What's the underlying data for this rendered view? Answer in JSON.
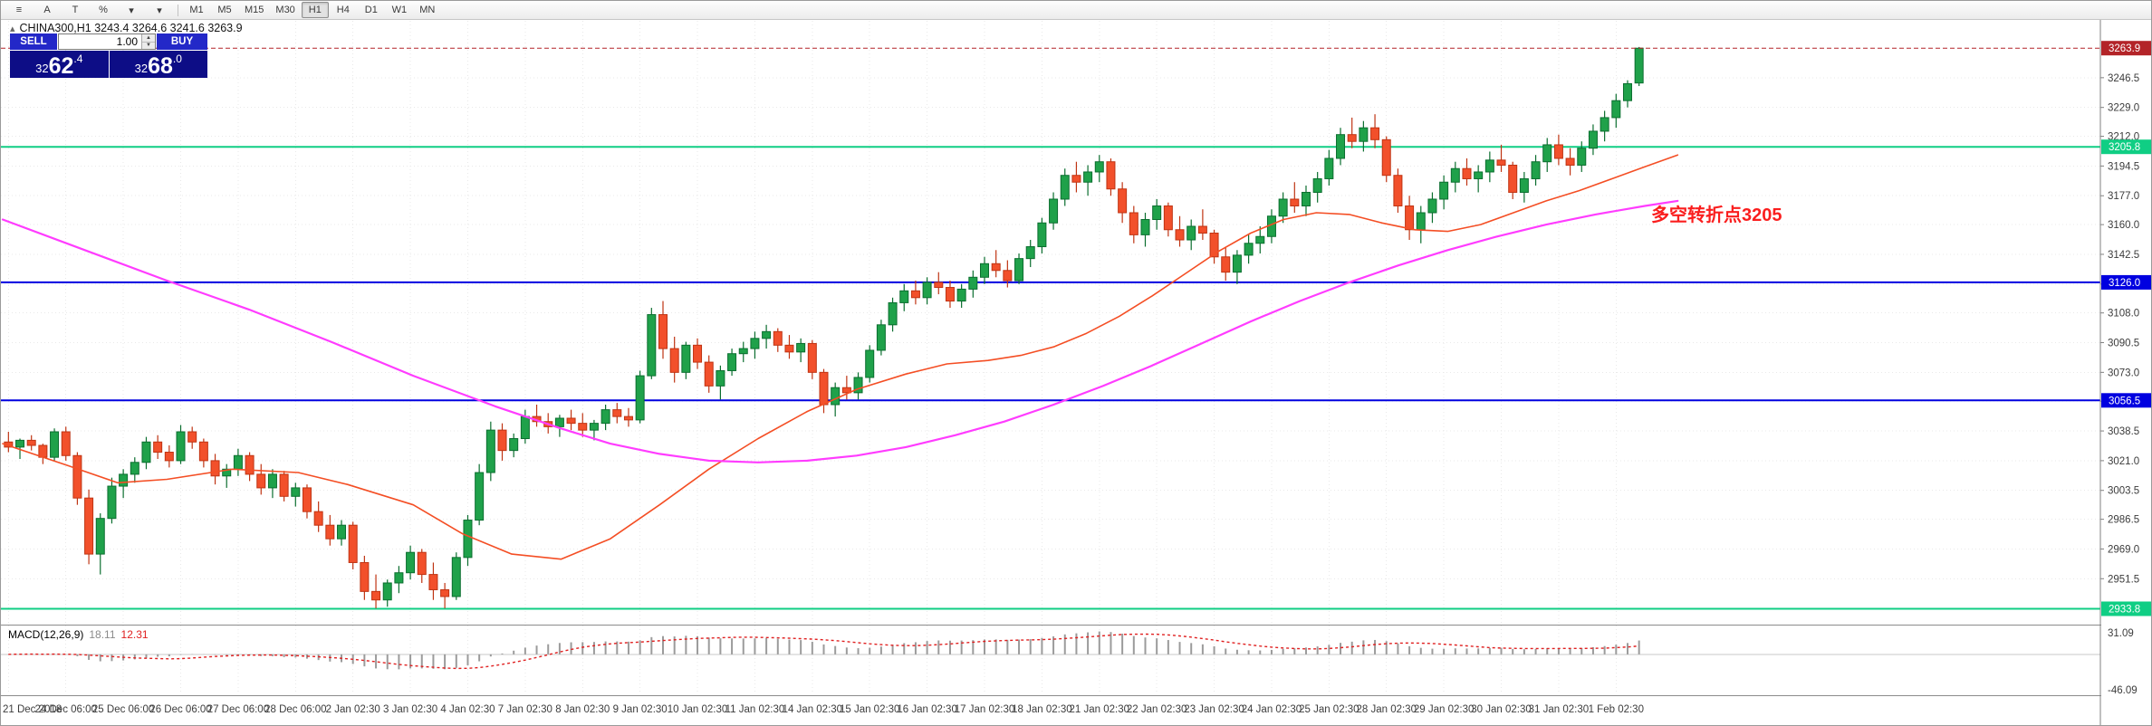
{
  "toolbar": {
    "left_buttons": [
      {
        "name": "chart-menu",
        "glyph": "≡"
      },
      {
        "name": "font-tool",
        "glyph": "A"
      },
      {
        "name": "text-tool",
        "glyph": "T"
      },
      {
        "name": "percent-scale",
        "glyph": "%"
      },
      {
        "name": "indicators-dropdown",
        "glyph": "▾"
      },
      {
        "name": "templates-dropdown",
        "glyph": "▾"
      }
    ],
    "timeframes": [
      "M1",
      "M5",
      "M15",
      "M30",
      "H1",
      "H4",
      "D1",
      "W1",
      "MN"
    ],
    "active_timeframe": "H1"
  },
  "chart": {
    "symbol": "CHINA300,H1",
    "info_line": "CHINA300,H1 3243.4 3264.6 3241.6 3263.9",
    "ohlc": {
      "open": "3243.4",
      "high": "3264.6",
      "low": "3241.6",
      "close": "3263.9"
    },
    "annotation": {
      "text": "多空转折点3205",
      "color": "#FA1E1E"
    },
    "view": {
      "price_top": 3280,
      "price_bottom": 2925
    },
    "colors": {
      "bg": "#FFFFFF",
      "grid": "#E9E9E9",
      "axis_text": "#3C3C3C",
      "up": "#1FA14A",
      "up_border": "#0B6E2F",
      "down": "#F2502B",
      "down_border": "#BF3413"
    },
    "price_axis": {
      "ticks": [
        "3246.5",
        "3229.0",
        "3212.0",
        "3194.5",
        "3177.0",
        "3160.0",
        "3142.5",
        "3125.0",
        "3108.0",
        "3090.5",
        "3073.0",
        "3056.0",
        "3038.5",
        "3021.0",
        "3003.5",
        "2986.5",
        "2969.0",
        "2951.5"
      ]
    }
  },
  "one_click": {
    "sell_label": "SELL",
    "buy_label": "BUY",
    "volume": "1.00",
    "sell_price": "3262.4",
    "buy_price": "3268.0"
  },
  "icons": {
    "spinner_up": "▲",
    "spinner_down": "▼",
    "chart_marker": "▴"
  },
  "macd": {
    "label": "MACD(12,26,9)",
    "main_value": "18.11",
    "signal_value": "12.31",
    "axis_max": "31.09",
    "axis_min": "-46.09",
    "histogram_color": "#9B9B9B",
    "signal_color": "#E02020",
    "params": {
      "fast": 12,
      "slow": 26,
      "signal": 9
    }
  },
  "chart_data": {
    "type": "candlestick",
    "symbol": "CHINA300",
    "timeframe": "H1",
    "candles_per_label": 5,
    "x_axis_labels": [
      "21 Dec 2018",
      "24 Dec 06:00",
      "25 Dec 06:00",
      "26 Dec 06:00",
      "27 Dec 06:00",
      "28 Dec 06:00",
      "2 Jan 02:30",
      "3 Jan 02:30",
      "4 Jan 02:30",
      "7 Jan 02:30",
      "8 Jan 02:30",
      "9 Jan 02:30",
      "10 Jan 02:30",
      "11 Jan 02:30",
      "14 Jan 02:30",
      "15 Jan 02:30",
      "16 Jan 02:30",
      "17 Jan 02:30",
      "18 Jan 02:30",
      "21 Jan 02:30",
      "22 Jan 02:30",
      "23 Jan 02:30",
      "24 Jan 02:30",
      "25 Jan 02:30",
      "28 Jan 02:30",
      "29 Jan 02:30",
      "30 Jan 02:30",
      "31 Jan 02:30",
      "1 Feb 02:30"
    ],
    "ohlc_candles": [
      [
        3032,
        3038,
        3026,
        3029
      ],
      [
        3029,
        3034,
        3022,
        3033
      ],
      [
        3033,
        3036,
        3027,
        3030
      ],
      [
        3030,
        3031,
        3019,
        3023
      ],
      [
        3023,
        3040,
        3021,
        3038
      ],
      [
        3038,
        3041,
        3021,
        3024
      ],
      [
        3024,
        3026,
        2995,
        2999
      ],
      [
        2999,
        3004,
        2960,
        2966
      ],
      [
        2966,
        2990,
        2954,
        2987
      ],
      [
        2987,
        3011,
        2984,
        3006
      ],
      [
        3006,
        3016,
        2999,
        3013
      ],
      [
        3013,
        3023,
        3008,
        3020
      ],
      [
        3020,
        3035,
        3016,
        3032
      ],
      [
        3032,
        3036,
        3022,
        3026
      ],
      [
        3026,
        3030,
        3017,
        3021
      ],
      [
        3021,
        3042,
        3019,
        3038
      ],
      [
        3038,
        3041,
        3028,
        3032
      ],
      [
        3032,
        3034,
        3017,
        3021
      ],
      [
        3021,
        3025,
        3007,
        3012
      ],
      [
        3012,
        3019,
        3005,
        3016
      ],
      [
        3016,
        3028,
        3012,
        3024
      ],
      [
        3024,
        3026,
        3009,
        3013
      ],
      [
        3013,
        3019,
        3001,
        3005
      ],
      [
        3005,
        3016,
        2999,
        3013
      ],
      [
        3013,
        3015,
        2997,
        3000
      ],
      [
        3000,
        3008,
        2994,
        3005
      ],
      [
        3005,
        3007,
        2987,
        2991
      ],
      [
        2991,
        2997,
        2979,
        2983
      ],
      [
        2983,
        2989,
        2971,
        2975
      ],
      [
        2975,
        2986,
        2971,
        2983
      ],
      [
        2983,
        2985,
        2957,
        2961
      ],
      [
        2961,
        2965,
        2939,
        2944
      ],
      [
        2944,
        2954,
        2934,
        2939
      ],
      [
        2939,
        2951,
        2935,
        2949
      ],
      [
        2949,
        2959,
        2943,
        2955
      ],
      [
        2955,
        2971,
        2951,
        2967
      ],
      [
        2967,
        2969,
        2949,
        2954
      ],
      [
        2954,
        2961,
        2939,
        2945
      ],
      [
        2945,
        2949,
        2934,
        2941
      ],
      [
        2941,
        2967,
        2939,
        2964
      ],
      [
        2964,
        2989,
        2959,
        2986
      ],
      [
        2986,
        3019,
        2983,
        3014
      ],
      [
        3014,
        3044,
        3009,
        3039
      ],
      [
        3039,
        3043,
        3021,
        3027
      ],
      [
        3027,
        3037,
        3023,
        3034
      ],
      [
        3034,
        3051,
        3031,
        3047
      ],
      [
        3047,
        3054,
        3041,
        3044
      ],
      [
        3044,
        3049,
        3037,
        3041
      ],
      [
        3041,
        3048,
        3035,
        3046
      ],
      [
        3046,
        3051,
        3039,
        3043
      ],
      [
        3043,
        3049,
        3035,
        3039
      ],
      [
        3039,
        3045,
        3033,
        3043
      ],
      [
        3043,
        3054,
        3039,
        3051
      ],
      [
        3051,
        3055,
        3043,
        3047
      ],
      [
        3047,
        3052,
        3041,
        3045
      ],
      [
        3045,
        3074,
        3043,
        3071
      ],
      [
        3071,
        3111,
        3069,
        3107
      ],
      [
        3107,
        3115,
        3081,
        3087
      ],
      [
        3087,
        3094,
        3067,
        3073
      ],
      [
        3073,
        3091,
        3069,
        3089
      ],
      [
        3089,
        3093,
        3075,
        3079
      ],
      [
        3079,
        3083,
        3061,
        3065
      ],
      [
        3065,
        3077,
        3057,
        3074
      ],
      [
        3074,
        3087,
        3071,
        3084
      ],
      [
        3084,
        3091,
        3079,
        3087
      ],
      [
        3087,
        3097,
        3081,
        3093
      ],
      [
        3093,
        3101,
        3087,
        3097
      ],
      [
        3097,
        3099,
        3085,
        3089
      ],
      [
        3089,
        3095,
        3081,
        3085
      ],
      [
        3085,
        3093,
        3079,
        3090
      ],
      [
        3090,
        3092,
        3069,
        3073
      ],
      [
        3073,
        3075,
        3049,
        3054
      ],
      [
        3054,
        3067,
        3047,
        3064
      ],
      [
        3064,
        3071,
        3057,
        3061
      ],
      [
        3061,
        3073,
        3057,
        3070
      ],
      [
        3070,
        3089,
        3067,
        3086
      ],
      [
        3086,
        3104,
        3083,
        3101
      ],
      [
        3101,
        3117,
        3097,
        3114
      ],
      [
        3114,
        3125,
        3109,
        3121
      ],
      [
        3121,
        3127,
        3113,
        3117
      ],
      [
        3117,
        3129,
        3113,
        3126
      ],
      [
        3126,
        3132,
        3119,
        3123
      ],
      [
        3123,
        3127,
        3111,
        3115
      ],
      [
        3115,
        3125,
        3111,
        3122
      ],
      [
        3122,
        3133,
        3117,
        3129
      ],
      [
        3129,
        3141,
        3125,
        3137
      ],
      [
        3137,
        3145,
        3129,
        3133
      ],
      [
        3133,
        3139,
        3123,
        3127
      ],
      [
        3127,
        3143,
        3125,
        3140
      ],
      [
        3140,
        3151,
        3135,
        3147
      ],
      [
        3147,
        3164,
        3143,
        3161
      ],
      [
        3161,
        3179,
        3157,
        3175
      ],
      [
        3175,
        3193,
        3171,
        3189
      ],
      [
        3189,
        3197,
        3179,
        3185
      ],
      [
        3185,
        3195,
        3177,
        3191
      ],
      [
        3191,
        3201,
        3185,
        3197
      ],
      [
        3197,
        3199,
        3177,
        3181
      ],
      [
        3181,
        3185,
        3161,
        3167
      ],
      [
        3167,
        3171,
        3149,
        3154
      ],
      [
        3154,
        3167,
        3147,
        3163
      ],
      [
        3163,
        3175,
        3157,
        3171
      ],
      [
        3171,
        3173,
        3153,
        3157
      ],
      [
        3157,
        3165,
        3147,
        3151
      ],
      [
        3151,
        3163,
        3145,
        3159
      ],
      [
        3159,
        3169,
        3151,
        3155
      ],
      [
        3155,
        3157,
        3137,
        3141
      ],
      [
        3141,
        3147,
        3127,
        3132
      ],
      [
        3132,
        3145,
        3125,
        3142
      ],
      [
        3142,
        3154,
        3137,
        3149
      ],
      [
        3149,
        3159,
        3143,
        3153
      ],
      [
        3153,
        3169,
        3149,
        3165
      ],
      [
        3165,
        3179,
        3161,
        3175
      ],
      [
        3175,
        3185,
        3167,
        3171
      ],
      [
        3171,
        3183,
        3165,
        3179
      ],
      [
        3179,
        3191,
        3173,
        3187
      ],
      [
        3187,
        3204,
        3183,
        3199
      ],
      [
        3199,
        3217,
        3195,
        3213
      ],
      [
        3213,
        3223,
        3205,
        3209
      ],
      [
        3209,
        3221,
        3203,
        3217
      ],
      [
        3217,
        3225,
        3205,
        3210
      ],
      [
        3210,
        3212,
        3185,
        3189
      ],
      [
        3189,
        3193,
        3167,
        3171
      ],
      [
        3171,
        3177,
        3151,
        3157
      ],
      [
        3157,
        3171,
        3149,
        3167
      ],
      [
        3167,
        3179,
        3161,
        3175
      ],
      [
        3175,
        3189,
        3169,
        3185
      ],
      [
        3185,
        3197,
        3179,
        3193
      ],
      [
        3193,
        3199,
        3183,
        3187
      ],
      [
        3187,
        3195,
        3179,
        3191
      ],
      [
        3191,
        3203,
        3185,
        3198
      ],
      [
        3198,
        3207,
        3191,
        3195
      ],
      [
        3195,
        3197,
        3175,
        3179
      ],
      [
        3179,
        3191,
        3173,
        3187
      ],
      [
        3187,
        3201,
        3183,
        3197
      ],
      [
        3197,
        3211,
        3191,
        3207
      ],
      [
        3207,
        3213,
        3195,
        3199
      ],
      [
        3199,
        3205,
        3189,
        3195
      ],
      [
        3195,
        3209,
        3191,
        3205
      ],
      [
        3205,
        3219,
        3201,
        3215
      ],
      [
        3215,
        3227,
        3209,
        3223
      ],
      [
        3223,
        3237,
        3217,
        3233
      ],
      [
        3233,
        3245,
        3229,
        3243
      ],
      [
        3243.4,
        3264.6,
        3241.6,
        3263.9
      ]
    ],
    "moving_averages": [
      {
        "name": "ma-fast-line",
        "color": "#F44E24",
        "width": 1.6,
        "points": [
          [
            0.0,
            3031
          ],
          [
            0.04,
            3018
          ],
          [
            0.07,
            3008
          ],
          [
            0.1,
            3010
          ],
          [
            0.14,
            3016
          ],
          [
            0.18,
            3014
          ],
          [
            0.21,
            3007
          ],
          [
            0.25,
            2995
          ],
          [
            0.28,
            2978
          ],
          [
            0.31,
            2966
          ],
          [
            0.34,
            2963
          ],
          [
            0.37,
            2975
          ],
          [
            0.4,
            2995
          ],
          [
            0.43,
            3016
          ],
          [
            0.46,
            3034
          ],
          [
            0.49,
            3050
          ],
          [
            0.52,
            3063
          ],
          [
            0.55,
            3072
          ],
          [
            0.575,
            3078
          ],
          [
            0.6,
            3080
          ],
          [
            0.62,
            3083
          ],
          [
            0.64,
            3088
          ],
          [
            0.66,
            3096
          ],
          [
            0.68,
            3106
          ],
          [
            0.7,
            3118
          ],
          [
            0.72,
            3131
          ],
          [
            0.74,
            3144
          ],
          [
            0.76,
            3155
          ],
          [
            0.78,
            3163
          ],
          [
            0.8,
            3167
          ],
          [
            0.82,
            3166
          ],
          [
            0.84,
            3161
          ],
          [
            0.86,
            3157
          ],
          [
            0.88,
            3156
          ],
          [
            0.9,
            3160
          ],
          [
            0.92,
            3167
          ],
          [
            0.94,
            3174
          ],
          [
            0.96,
            3180
          ],
          [
            0.98,
            3187
          ],
          [
            1.0,
            3194
          ],
          [
            1.02,
            3201
          ]
        ]
      },
      {
        "name": "ma-slow-line",
        "color": "#FF3CFF",
        "width": 2.2,
        "points": [
          [
            0.0,
            3163
          ],
          [
            0.05,
            3145
          ],
          [
            0.1,
            3127
          ],
          [
            0.15,
            3110
          ],
          [
            0.2,
            3091
          ],
          [
            0.25,
            3071
          ],
          [
            0.3,
            3053
          ],
          [
            0.34,
            3040
          ],
          [
            0.37,
            3031
          ],
          [
            0.4,
            3025
          ],
          [
            0.43,
            3021
          ],
          [
            0.46,
            3020
          ],
          [
            0.49,
            3021
          ],
          [
            0.52,
            3024
          ],
          [
            0.55,
            3029
          ],
          [
            0.58,
            3036
          ],
          [
            0.61,
            3044
          ],
          [
            0.64,
            3054
          ],
          [
            0.67,
            3065
          ],
          [
            0.7,
            3077
          ],
          [
            0.73,
            3090
          ],
          [
            0.76,
            3103
          ],
          [
            0.79,
            3115
          ],
          [
            0.82,
            3126
          ],
          [
            0.85,
            3136
          ],
          [
            0.88,
            3145
          ],
          [
            0.91,
            3153
          ],
          [
            0.94,
            3160
          ],
          [
            0.97,
            3166
          ],
          [
            1.0,
            3171
          ],
          [
            1.02,
            3174
          ]
        ]
      }
    ],
    "hlines": [
      {
        "price": 3205.8,
        "label": "3205.8",
        "color": "#10CE84"
      },
      {
        "price": 3126.0,
        "label": "3126.0",
        "color": "#0000E0"
      },
      {
        "price": 3056.5,
        "label": "3056.5",
        "color": "#0000E0"
      },
      {
        "price": 2933.8,
        "label": "2933.8",
        "color": "#10CE84"
      }
    ],
    "bid_line": {
      "price": 3263.9,
      "label": "3263.9",
      "color": "#B32428"
    }
  }
}
